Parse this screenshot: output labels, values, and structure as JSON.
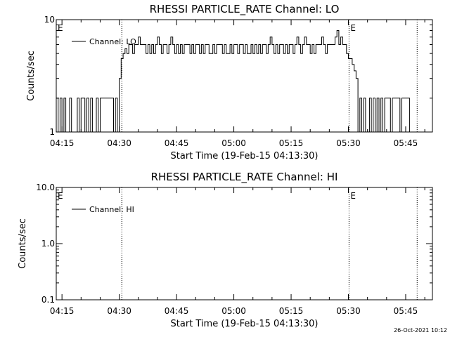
{
  "footer": {
    "timestamp": "26-Oct-2021 10:12"
  },
  "chart_data": [
    {
      "type": "line",
      "title": "RHESSI PARTICLE_RATE Channel: LO",
      "xlabel": "Start Time (19-Feb-15 04:13:30)",
      "ylabel": "Counts/sec",
      "yscale": "log",
      "ylim": [
        1,
        10
      ],
      "xlim": [
        "04:13:30",
        "05:52:00"
      ],
      "x_ticks": [
        "04:15",
        "04:30",
        "04:45",
        "05:00",
        "05:15",
        "05:30",
        "05:45"
      ],
      "y_ticks": [
        "1",
        "10"
      ],
      "legend": {
        "placement": "top-left",
        "entries": [
          "Channel: LO"
        ]
      },
      "event_lines": [
        "04:30:40",
        "05:30:10",
        "05:48:00"
      ],
      "event_markers": [
        {
          "label": "E",
          "at": "04:13:30"
        },
        {
          "label": "E",
          "at": "05:30:10"
        }
      ],
      "series": [
        {
          "name": "Channel: LO",
          "x": [
            "04:13:30",
            "04:14:00",
            "04:14:30",
            "04:15:00",
            "04:15:30",
            "04:16:00",
            "04:16:30",
            "04:17:00",
            "04:17:30",
            "04:18:00",
            "04:18:30",
            "04:19:00",
            "04:19:30",
            "04:20:00",
            "04:20:30",
            "04:21:00",
            "04:21:30",
            "04:22:00",
            "04:22:30",
            "04:23:00",
            "04:23:30",
            "04:24:00",
            "04:24:30",
            "04:25:00",
            "04:25:30",
            "04:26:00",
            "04:26:30",
            "04:27:00",
            "04:27:30",
            "04:28:00",
            "04:28:30",
            "04:29:00",
            "04:29:30",
            "04:30:00",
            "04:30:30",
            "04:31:00",
            "04:31:30",
            "04:32:00",
            "04:32:30",
            "04:33:00",
            "04:33:30",
            "04:34:00",
            "04:34:30",
            "04:35:00",
            "04:35:30",
            "04:36:00",
            "04:36:30",
            "04:37:00",
            "04:37:30",
            "04:38:00",
            "04:38:30",
            "04:39:00",
            "04:39:30",
            "04:40:00",
            "04:40:30",
            "04:41:00",
            "04:41:30",
            "04:42:00",
            "04:42:30",
            "04:43:00",
            "04:43:30",
            "04:44:00",
            "04:44:30",
            "04:45:00",
            "04:45:30",
            "04:46:00",
            "04:46:30",
            "04:47:00",
            "04:47:30",
            "04:48:00",
            "04:48:30",
            "04:49:00",
            "04:49:30",
            "04:50:00",
            "04:50:30",
            "04:51:00",
            "04:51:30",
            "04:52:00",
            "04:52:30",
            "04:53:00",
            "04:53:30",
            "04:54:00",
            "04:54:30",
            "04:55:00",
            "04:55:30",
            "04:56:00",
            "04:56:30",
            "04:57:00",
            "04:57:30",
            "04:58:00",
            "04:58:30",
            "04:59:00",
            "04:59:30",
            "05:00:00",
            "05:00:30",
            "05:01:00",
            "05:01:30",
            "05:02:00",
            "05:02:30",
            "05:03:00",
            "05:03:30",
            "05:04:00",
            "05:04:30",
            "05:05:00",
            "05:05:30",
            "05:06:00",
            "05:06:30",
            "05:07:00",
            "05:07:30",
            "05:08:00",
            "05:08:30",
            "05:09:00",
            "05:09:30",
            "05:10:00",
            "05:10:30",
            "05:11:00",
            "05:11:30",
            "05:12:00",
            "05:12:30",
            "05:13:00",
            "05:13:30",
            "05:14:00",
            "05:14:30",
            "05:15:00",
            "05:15:30",
            "05:16:00",
            "05:16:30",
            "05:17:00",
            "05:17:30",
            "05:18:00",
            "05:18:30",
            "05:19:00",
            "05:19:30",
            "05:20:00",
            "05:20:30",
            "05:21:00",
            "05:21:30",
            "05:22:00",
            "05:22:30",
            "05:23:00",
            "05:23:30",
            "05:24:00",
            "05:24:30",
            "05:25:00",
            "05:25:30",
            "05:26:00",
            "05:26:30",
            "05:27:00",
            "05:27:30",
            "05:28:00",
            "05:28:30",
            "05:29:00",
            "05:29:30",
            "05:30:00",
            "05:30:30",
            "05:31:00",
            "05:31:30",
            "05:32:00",
            "05:32:30",
            "05:33:00",
            "05:33:30",
            "05:34:00",
            "05:34:30",
            "05:35:00",
            "05:35:30",
            "05:36:00",
            "05:36:30",
            "05:37:00",
            "05:37:30",
            "05:38:00",
            "05:38:30",
            "05:39:00",
            "05:39:30",
            "05:40:00",
            "05:40:30",
            "05:41:00",
            "05:41:30",
            "05:42:00",
            "05:42:30",
            "05:43:00",
            "05:43:30",
            "05:44:00",
            "05:44:30",
            "05:45:00",
            "05:45:30",
            "05:46:00"
          ],
          "y": [
            2,
            1,
            2,
            1,
            2,
            1,
            1,
            2,
            1,
            1,
            1,
            2,
            1,
            2,
            2,
            1,
            2,
            1,
            2,
            1,
            1,
            2,
            1,
            2,
            2,
            2,
            2,
            2,
            2,
            2,
            1,
            2,
            1,
            3,
            4.5,
            5,
            5.5,
            5,
            6,
            6,
            5,
            6,
            6,
            7,
            6,
            6,
            6,
            5,
            6,
            5,
            6,
            5,
            6,
            7,
            6,
            5,
            6,
            6,
            5,
            6,
            7,
            6,
            5,
            6,
            5,
            6,
            5,
            6,
            6,
            6,
            5,
            6,
            5,
            6,
            6,
            5,
            6,
            5,
            6,
            6,
            5,
            5,
            6,
            5,
            6,
            6,
            6,
            5,
            6,
            5,
            5,
            6,
            5,
            6,
            6,
            5,
            6,
            6,
            5,
            6,
            5,
            5,
            6,
            5,
            6,
            5,
            6,
            5,
            6,
            6,
            5,
            6,
            7,
            6,
            5,
            6,
            5,
            6,
            6,
            5,
            6,
            5,
            6,
            6,
            5,
            6,
            7,
            6,
            5,
            6,
            7,
            6,
            6,
            5,
            6,
            5,
            6,
            6,
            6,
            7,
            6,
            5,
            6,
            6,
            6,
            6,
            7,
            8,
            6,
            7,
            6,
            6,
            5,
            4.5,
            4.5,
            4,
            3.5,
            3,
            1,
            2,
            1,
            2,
            1,
            1,
            2,
            1,
            2,
            1,
            2,
            1,
            2,
            1,
            2,
            2,
            2,
            1,
            2,
            2,
            2,
            2,
            1,
            2,
            2,
            2,
            2,
            1
          ]
        }
      ]
    },
    {
      "type": "line",
      "title": "RHESSI PARTICLE_RATE Channel: HI",
      "xlabel": "Start Time (19-Feb-15 04:13:30)",
      "ylabel": "Counts/sec",
      "yscale": "log",
      "ylim": [
        0.1,
        10
      ],
      "xlim": [
        "04:13:30",
        "05:52:00"
      ],
      "x_ticks": [
        "04:15",
        "04:30",
        "04:45",
        "05:00",
        "05:15",
        "05:30",
        "05:45"
      ],
      "y_ticks": [
        "10.0",
        "1.0",
        "0.1"
      ],
      "legend": {
        "placement": "top-left",
        "entries": [
          "Channel: HI"
        ]
      },
      "event_lines": [
        "04:30:40",
        "05:30:10",
        "05:48:00"
      ],
      "event_markers": [
        {
          "label": "E",
          "at": "04:13:30"
        },
        {
          "label": "E",
          "at": "05:30:10"
        }
      ],
      "series": [
        {
          "name": "Channel: HI",
          "x": [],
          "y": []
        }
      ]
    }
  ]
}
